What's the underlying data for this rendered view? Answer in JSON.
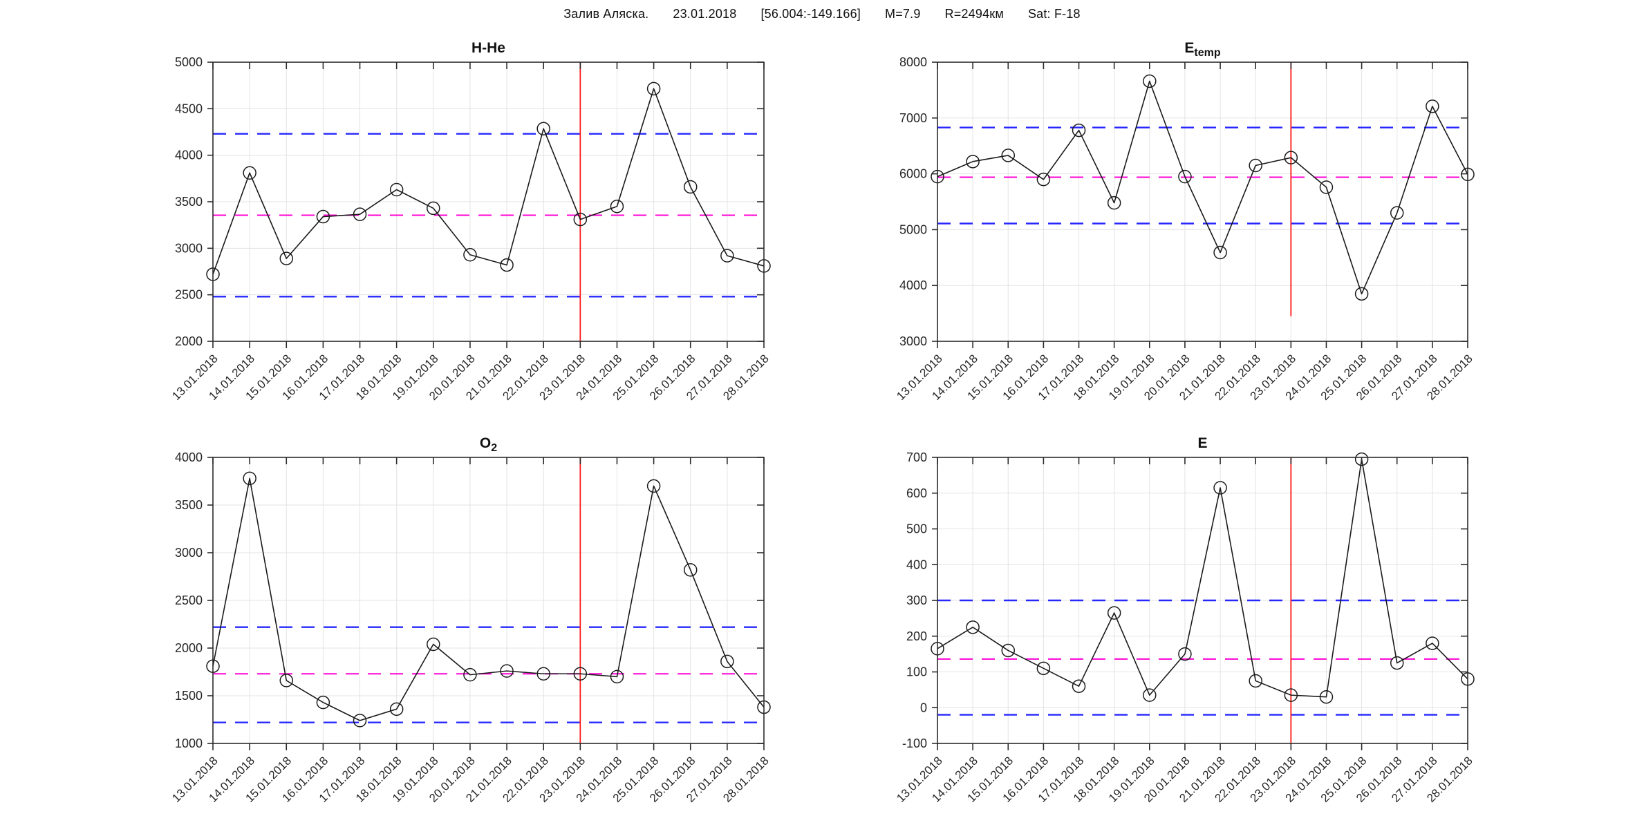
{
  "suptitle": {
    "location": "Залив Аляска.",
    "date": "23.01.2018",
    "coords": "[56.004:-149.166]",
    "magnitude": "M=7.9",
    "radius": "R=2494км",
    "satellite": "Sat: F-18"
  },
  "colors": {
    "series": "#1a1a1a",
    "bound": "#2727ff",
    "mean": "#ff00d4",
    "event": "#ff1a1a",
    "grid": "#e3e3e3",
    "axis": "#2b2b2b",
    "text": "#262626"
  },
  "dates": [
    "13.01.2018",
    "14.01.2018",
    "15.01.2018",
    "16.01.2018",
    "17.01.2018",
    "18.01.2018",
    "19.01.2018",
    "20.01.2018",
    "21.01.2018",
    "22.01.2018",
    "23.01.2018",
    "24.01.2018",
    "25.01.2018",
    "26.01.2018",
    "27.01.2018",
    "28.01.2018"
  ],
  "event_date": "23.01.2018",
  "chart_data": [
    {
      "type": "line",
      "key": "h-he",
      "title": "H-He",
      "title_sub": "",
      "xlabel": "",
      "ylabel": "",
      "grid": true,
      "marker": "open-circle",
      "ylim": [
        2000,
        5000
      ],
      "ytick_step": 500,
      "categories": [
        "13.01.2018",
        "14.01.2018",
        "15.01.2018",
        "16.01.2018",
        "17.01.2018",
        "18.01.2018",
        "19.01.2018",
        "20.01.2018",
        "21.01.2018",
        "22.01.2018",
        "23.01.2018",
        "24.01.2018",
        "25.01.2018",
        "26.01.2018",
        "27.01.2018",
        "28.01.2018"
      ],
      "values": [
        2720,
        3810,
        2890,
        3340,
        3365,
        3630,
        3430,
        2930,
        2820,
        4285,
        3310,
        3450,
        4715,
        3660,
        2920,
        2810
      ],
      "upper_bound": 4230,
      "mean": 3355,
      "lower_bound": 2480,
      "event_line": {
        "date": "23.01.2018",
        "y_from": 2000,
        "y_to": 5000
      }
    },
    {
      "type": "line",
      "key": "e-temp",
      "title": "E",
      "title_sub": "temp",
      "xlabel": "",
      "ylabel": "",
      "grid": true,
      "marker": "open-circle",
      "ylim": [
        3000,
        8000
      ],
      "ytick_step": 1000,
      "categories": [
        "13.01.2018",
        "14.01.2018",
        "15.01.2018",
        "16.01.2018",
        "17.01.2018",
        "18.01.2018",
        "19.01.2018",
        "20.01.2018",
        "21.01.2018",
        "22.01.2018",
        "23.01.2018",
        "24.01.2018",
        "25.01.2018",
        "26.01.2018",
        "27.01.2018",
        "28.01.2018"
      ],
      "values": [
        5950,
        6220,
        6330,
        5900,
        6780,
        5480,
        7660,
        5950,
        4590,
        6150,
        6290,
        5760,
        3850,
        5300,
        7210,
        5990
      ],
      "upper_bound": 6830,
      "mean": 5940,
      "lower_bound": 5110,
      "event_line": {
        "date": "23.01.2018",
        "y_from": 3450,
        "y_to": 8000
      }
    },
    {
      "type": "line",
      "key": "o2",
      "title": "O",
      "title_sub": "2",
      "xlabel": "",
      "ylabel": "",
      "grid": true,
      "marker": "open-circle",
      "ylim": [
        1000,
        4000
      ],
      "ytick_step": 500,
      "categories": [
        "13.01.2018",
        "14.01.2018",
        "15.01.2018",
        "16.01.2018",
        "17.01.2018",
        "18.01.2018",
        "19.01.2018",
        "20.01.2018",
        "21.01.2018",
        "22.01.2018",
        "23.01.2018",
        "24.01.2018",
        "25.01.2018",
        "26.01.2018",
        "27.01.2018",
        "28.01.2018"
      ],
      "values": [
        1810,
        3780,
        1660,
        1430,
        1240,
        1360,
        2040,
        1720,
        1760,
        1730,
        1730,
        1700,
        3700,
        2820,
        1860,
        1380
      ],
      "upper_bound": 2220,
      "mean": 1730,
      "lower_bound": 1220,
      "event_line": {
        "date": "23.01.2018",
        "y_from": 1000,
        "y_to": 4000
      }
    },
    {
      "type": "line",
      "key": "e",
      "title": "E",
      "title_sub": "",
      "xlabel": "",
      "ylabel": "",
      "grid": true,
      "marker": "open-circle",
      "ylim": [
        -100,
        700
      ],
      "ytick_step": 100,
      "categories": [
        "13.01.2018",
        "14.01.2018",
        "15.01.2018",
        "16.01.2018",
        "17.01.2018",
        "18.01.2018",
        "19.01.2018",
        "20.01.2018",
        "21.01.2018",
        "22.01.2018",
        "23.01.2018",
        "24.01.2018",
        "25.01.2018",
        "26.01.2018",
        "27.01.2018",
        "28.01.2018"
      ],
      "values": [
        165,
        225,
        160,
        110,
        60,
        265,
        35,
        150,
        615,
        75,
        35,
        30,
        695,
        125,
        180,
        80
      ],
      "upper_bound": 300,
      "mean": 136,
      "lower_bound": -20,
      "event_line": {
        "date": "23.01.2018",
        "y_from": -100,
        "y_to": 700
      }
    }
  ]
}
